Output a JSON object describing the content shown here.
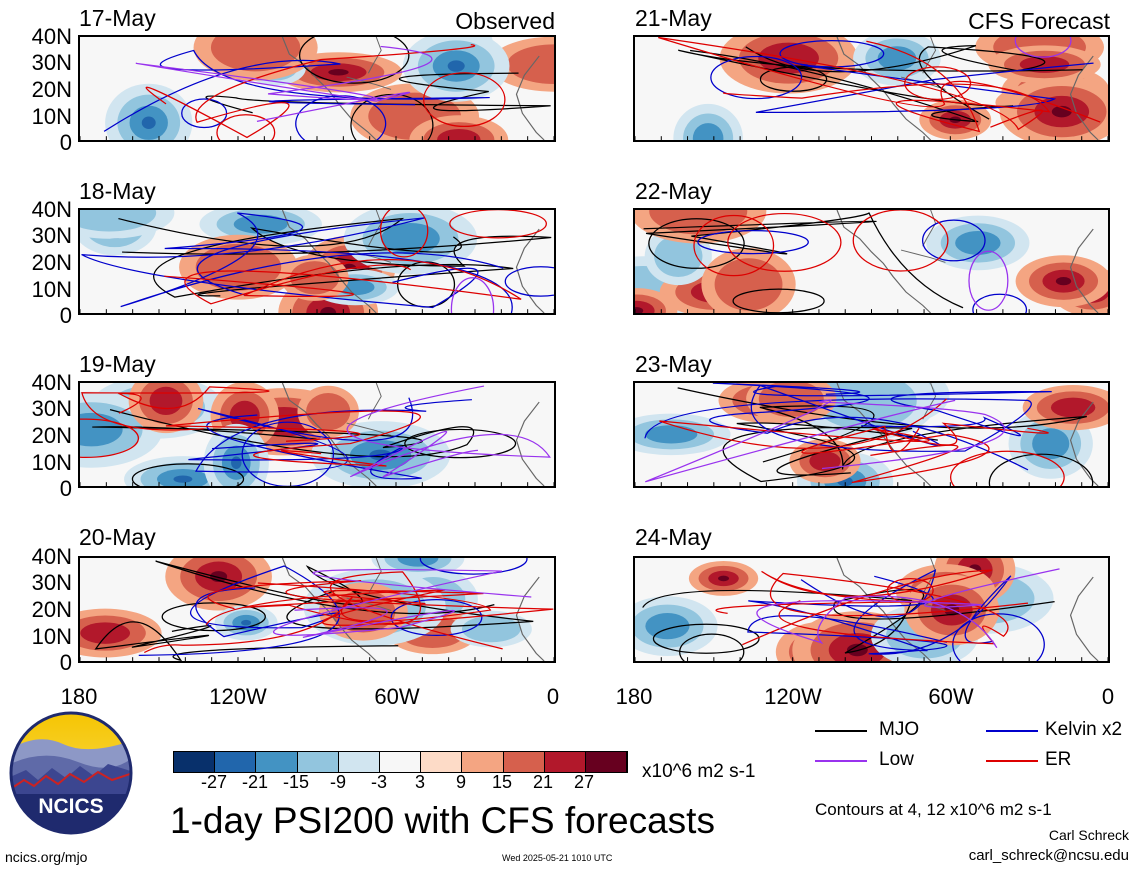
{
  "panels": [
    {
      "date": "17-May",
      "tag": "Observed"
    },
    {
      "date": "18-May",
      "tag": ""
    },
    {
      "date": "19-May",
      "tag": ""
    },
    {
      "date": "20-May",
      "tag": ""
    },
    {
      "date": "21-May",
      "tag": "CFS Forecast"
    },
    {
      "date": "22-May",
      "tag": ""
    },
    {
      "date": "23-May",
      "tag": ""
    },
    {
      "date": "24-May",
      "tag": ""
    }
  ],
  "lat_labels": [
    "40N",
    "30N",
    "20N",
    "10N",
    "0"
  ],
  "lon_labels": [
    "180",
    "120W",
    "60W",
    "0"
  ],
  "colorbar": {
    "ticks": [
      "-27",
      "-21",
      "-15",
      "-9",
      "-3",
      "3",
      "9",
      "15",
      "21",
      "27"
    ],
    "colors": [
      "#08306b",
      "#2166ac",
      "#4393c3",
      "#92c5de",
      "#d1e5f0",
      "#f7f7f7",
      "#fddbc7",
      "#f4a582",
      "#d6604d",
      "#b2182b",
      "#67001f"
    ],
    "units": "x10^6 m2 s-1"
  },
  "legend": {
    "items": [
      {
        "label": "MJO",
        "color": "#000000"
      },
      {
        "label": "Kelvin x2",
        "color": "#0000cc"
      },
      {
        "label": "Low",
        "color": "#9933ee"
      },
      {
        "label": "ER",
        "color": "#dd0000"
      }
    ]
  },
  "title": "1-day PSI200 with CFS forecasts",
  "contours_note": "Contours at 4, 12 x10^6 m2 s-1",
  "author": "Carl Schreck",
  "email": "carl_schreck@ncsu.edu",
  "site": "ncics.org/mjo",
  "timestamp": "Wed 2025-05-21 1010 UTC",
  "logo_text": "NCICS"
}
